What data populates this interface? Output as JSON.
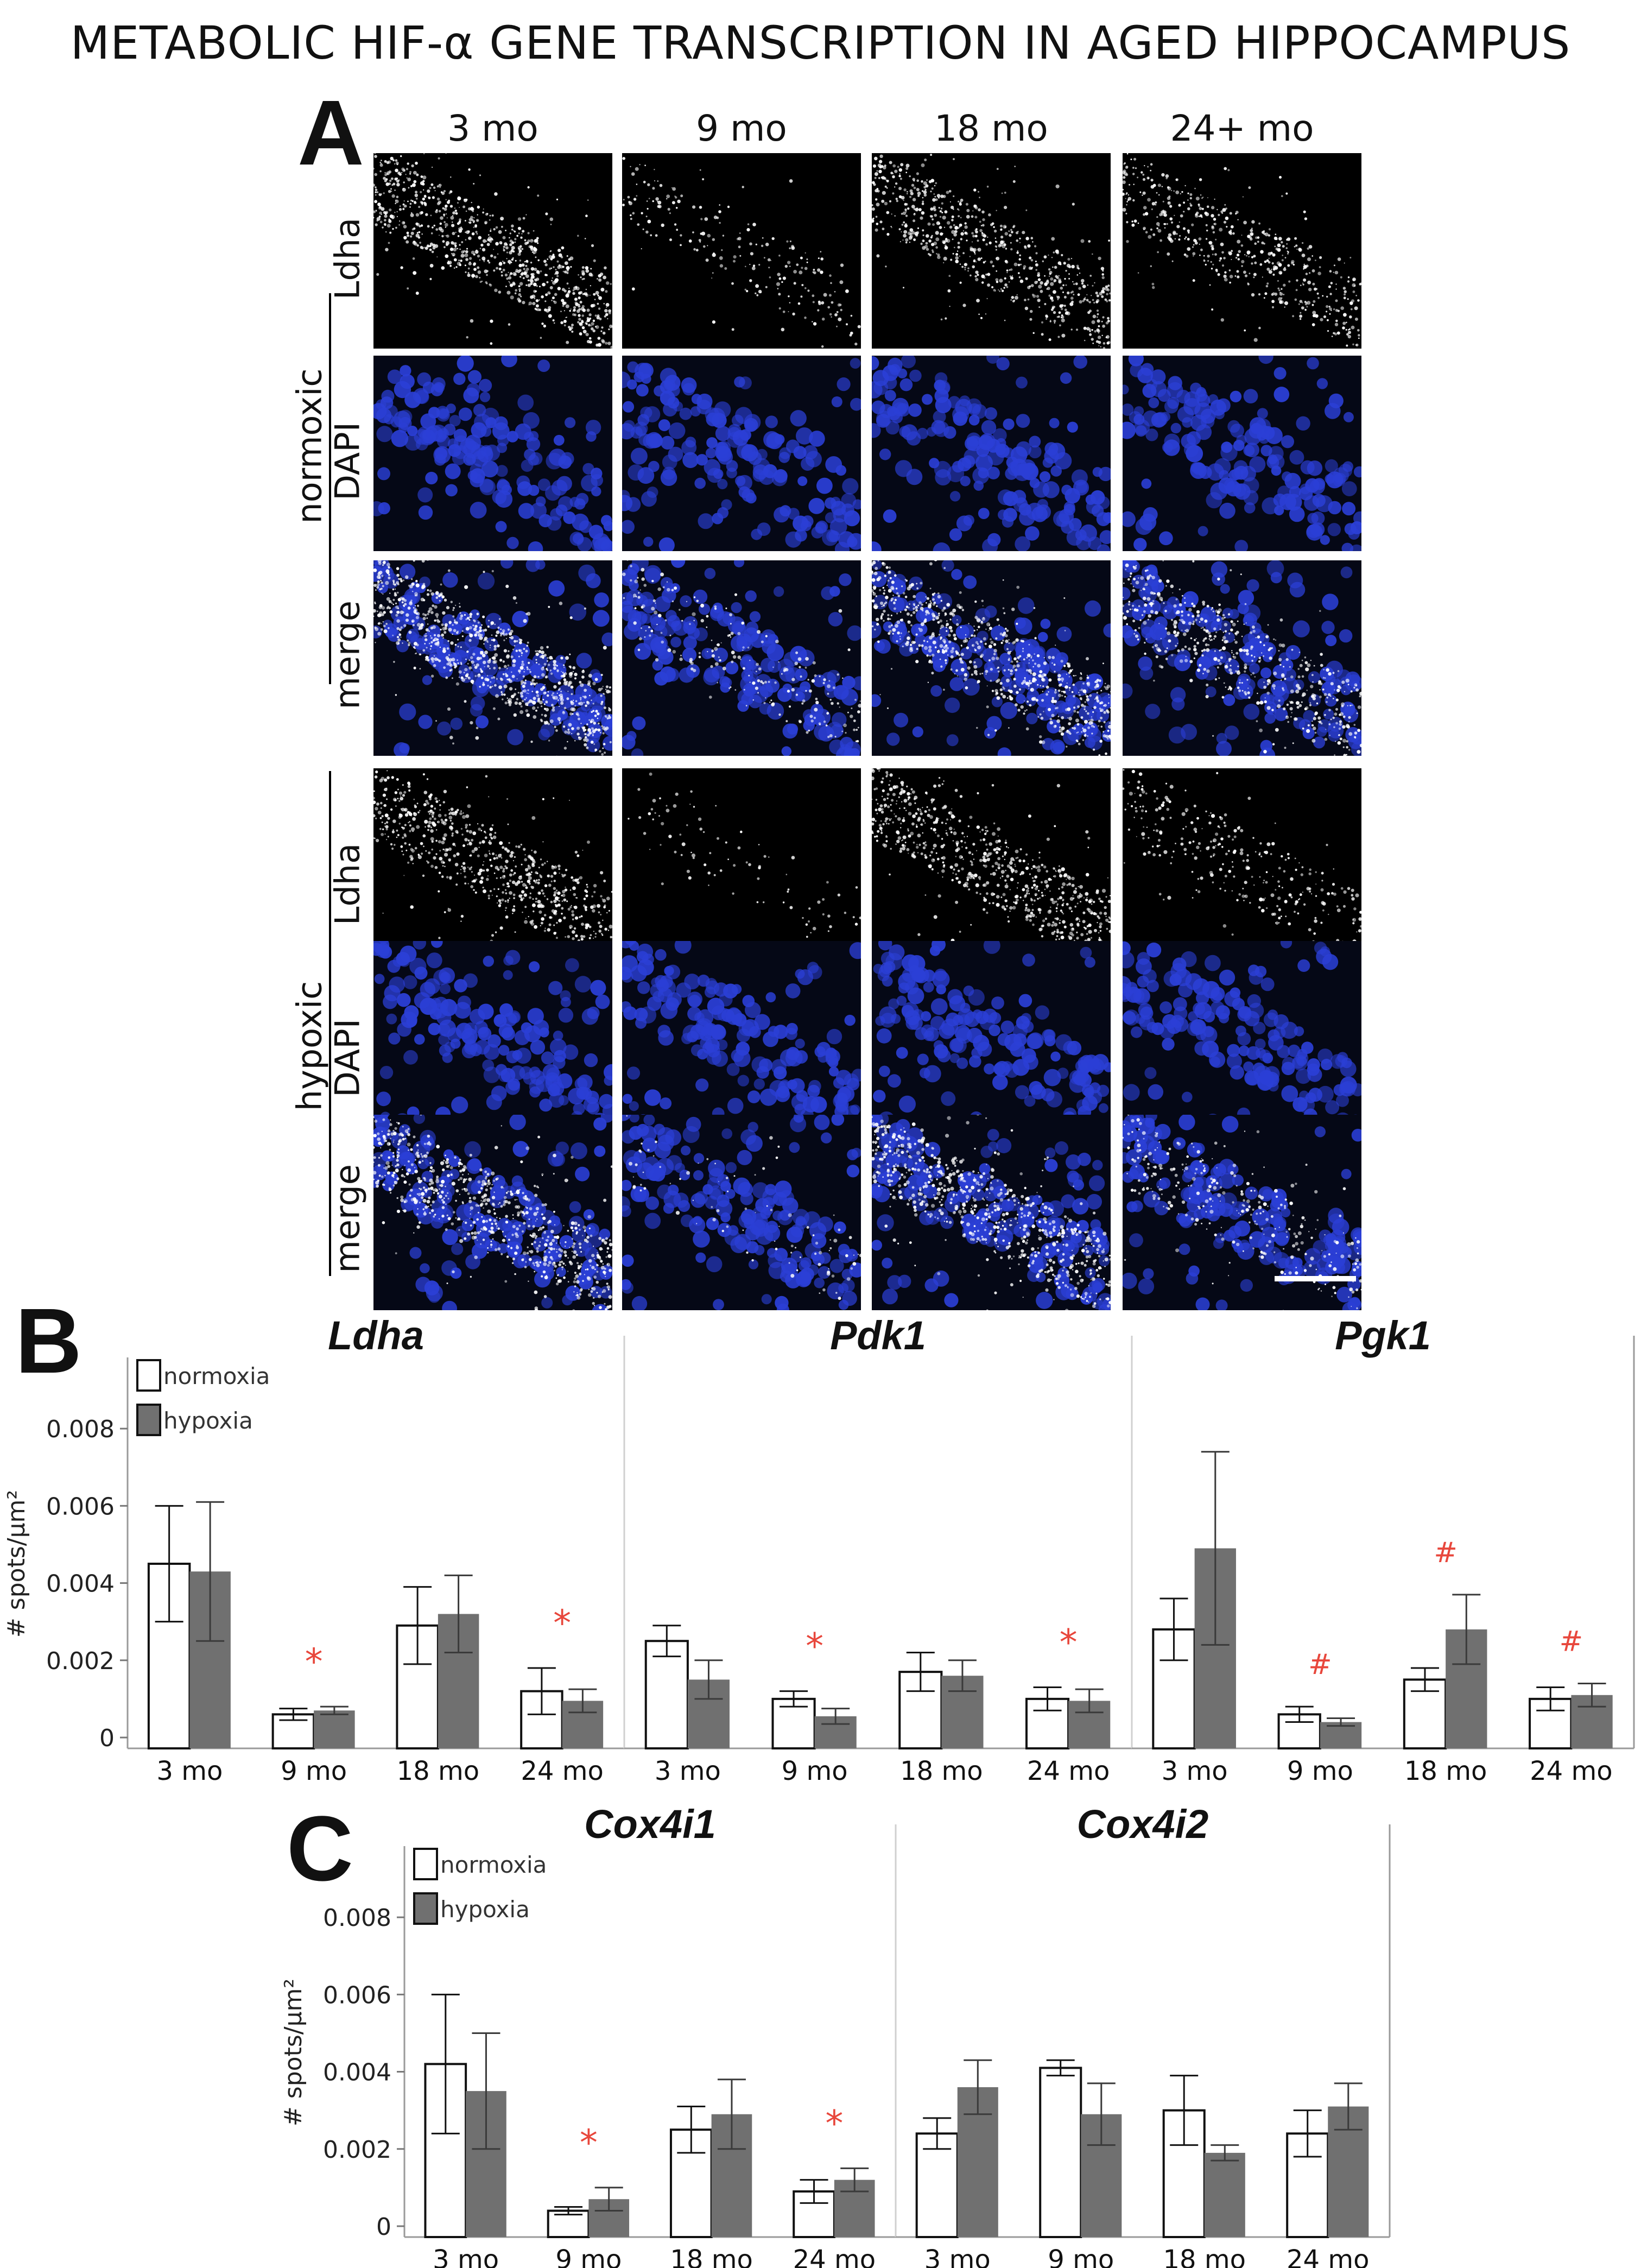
{
  "figure_title": "METABOLIC HIF-α GENE TRANSCRIPTION IN AGED HIPPOCAMPUS",
  "panels": {
    "A": "A",
    "B": "B",
    "C": "C"
  },
  "panel_a": {
    "columns": [
      "3 mo",
      "9 mo",
      "18 mo",
      "24+ mo"
    ],
    "conditions": [
      "normoxic",
      "hypoxic"
    ],
    "rows": [
      "Ldha",
      "DAPI",
      "merge",
      "Ldha",
      "DAPI",
      "merge"
    ],
    "colors": {
      "dapi": "#2b3fd6",
      "ldha": "#ffffff",
      "background": "#000000"
    }
  },
  "colors": {
    "normoxia_fill": "#ffffff",
    "hypoxia_fill": "#707070",
    "significance": "#e8473c"
  },
  "chart_data": [
    {
      "type": "bar",
      "panel": "B",
      "title": "Ldha",
      "categories": [
        "3 mo",
        "9 mo",
        "18 mo",
        "24 mo"
      ],
      "ylabel": "# spots/µm²",
      "ylim": [
        0,
        0.009
      ],
      "yticks": [
        "0",
        "0.002",
        "0.004",
        "0.006",
        "0.008"
      ],
      "legend": [
        "normoxia",
        "hypoxia"
      ],
      "series": [
        {
          "name": "normoxia",
          "values": [
            0.0045,
            0.0006,
            0.0029,
            0.0012
          ],
          "errors": [
            0.0015,
            0.00015,
            0.001,
            0.0006
          ]
        },
        {
          "name": "hypoxia",
          "values": [
            0.0043,
            0.0007,
            0.0032,
            0.00095
          ],
          "errors": [
            0.0018,
            0.0001,
            0.001,
            0.0003
          ]
        }
      ],
      "significance": [
        "",
        "*",
        "",
        "*"
      ]
    },
    {
      "type": "bar",
      "panel": "B",
      "title": "Pdk1",
      "categories": [
        "3 mo",
        "9 mo",
        "18 mo",
        "24 mo"
      ],
      "ylim": [
        0,
        0.009
      ],
      "series": [
        {
          "name": "normoxia",
          "values": [
            0.0025,
            0.001,
            0.0017,
            0.001
          ],
          "errors": [
            0.0004,
            0.0002,
            0.0005,
            0.0003
          ]
        },
        {
          "name": "hypoxia",
          "values": [
            0.0015,
            0.00055,
            0.0016,
            0.00095
          ],
          "errors": [
            0.0005,
            0.0002,
            0.0004,
            0.0003
          ]
        }
      ],
      "significance": [
        "",
        "*",
        "",
        "*"
      ]
    },
    {
      "type": "bar",
      "panel": "B",
      "title": "Pgk1",
      "categories": [
        "3 mo",
        "9 mo",
        "18 mo",
        "24 mo"
      ],
      "ylim": [
        0,
        0.009
      ],
      "series": [
        {
          "name": "normoxia",
          "values": [
            0.0028,
            0.0006,
            0.0015,
            0.001
          ],
          "errors": [
            0.0008,
            0.0002,
            0.0003,
            0.0003
          ]
        },
        {
          "name": "hypoxia",
          "values": [
            0.0049,
            0.0004,
            0.0028,
            0.0011
          ],
          "errors": [
            0.0025,
            0.0001,
            0.0009,
            0.0003
          ]
        }
      ],
      "significance": [
        "",
        "#",
        "#",
        "#"
      ]
    },
    {
      "type": "bar",
      "panel": "C",
      "title": "Cox4i1",
      "categories": [
        "3 mo",
        "9 mo",
        "18 mo",
        "24 mo"
      ],
      "ylabel": "# spots/µm²",
      "ylim": [
        0,
        0.009
      ],
      "yticks": [
        "0",
        "0.002",
        "0.004",
        "0.006",
        "0.008"
      ],
      "legend": [
        "normoxia",
        "hypoxia"
      ],
      "series": [
        {
          "name": "normoxia",
          "values": [
            0.0042,
            0.0004,
            0.0025,
            0.0009
          ],
          "errors": [
            0.0018,
            0.0001,
            0.0006,
            0.0003
          ]
        },
        {
          "name": "hypoxia",
          "values": [
            0.0035,
            0.0007,
            0.0029,
            0.0012
          ],
          "errors": [
            0.0015,
            0.0003,
            0.0009,
            0.0003
          ]
        }
      ],
      "significance": [
        "",
        "*",
        "",
        "*"
      ]
    },
    {
      "type": "bar",
      "panel": "C",
      "title": "Cox4i2",
      "categories": [
        "3 mo",
        "9 mo",
        "18 mo",
        "24 mo"
      ],
      "ylim": [
        0,
        0.009
      ],
      "series": [
        {
          "name": "normoxia",
          "values": [
            0.0024,
            0.0041,
            0.003,
            0.0024
          ],
          "errors": [
            0.0004,
            0.0002,
            0.0009,
            0.0006
          ]
        },
        {
          "name": "hypoxia",
          "values": [
            0.0036,
            0.0029,
            0.0019,
            0.0031
          ],
          "errors": [
            0.0007,
            0.0008,
            0.0002,
            0.0006
          ]
        }
      ],
      "significance": [
        "",
        "",
        "",
        ""
      ]
    }
  ]
}
